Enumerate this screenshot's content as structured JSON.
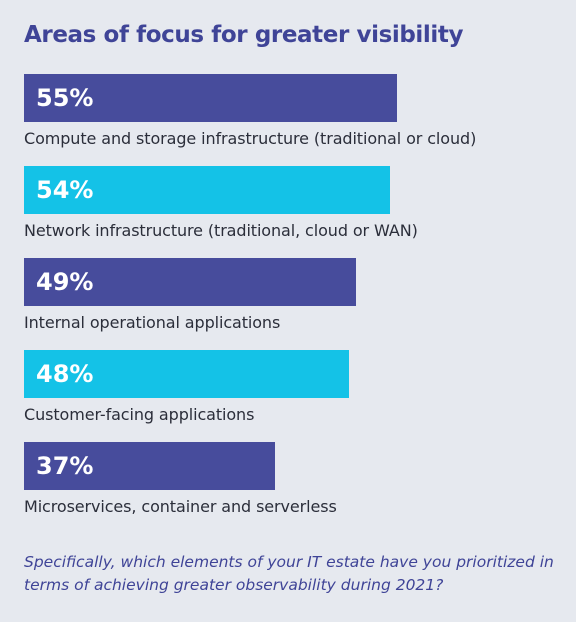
{
  "colors": {
    "background": "#e6e9ef",
    "title": "#3f4497",
    "primary_bar": "#474c9c",
    "secondary_bar": "#14c2e7",
    "label_text": "#2b2e3a"
  },
  "chart_data": {
    "type": "bar",
    "orientation": "horizontal",
    "title": "Areas of focus for greater visibility",
    "categories": [
      "Compute and storage infrastructure (traditional or cloud)",
      "Network infrastructure (traditional, cloud or WAN)",
      "Internal operational applications",
      "Customer-facing applications",
      "Microservices, container and serverless"
    ],
    "values": [
      55,
      54,
      49,
      48,
      37
    ],
    "value_labels": [
      "55%",
      "54%",
      "49%",
      "48%",
      "37%"
    ],
    "bar_colors": [
      "#474c9c",
      "#14c2e7",
      "#474c9c",
      "#14c2e7",
      "#474c9c"
    ],
    "xlim": [
      0,
      100
    ],
    "grid": false,
    "legend": "none",
    "footnote": "Specifically, which elements of your IT estate have you prioritized in terms of achieving greater observability during 2021?"
  }
}
